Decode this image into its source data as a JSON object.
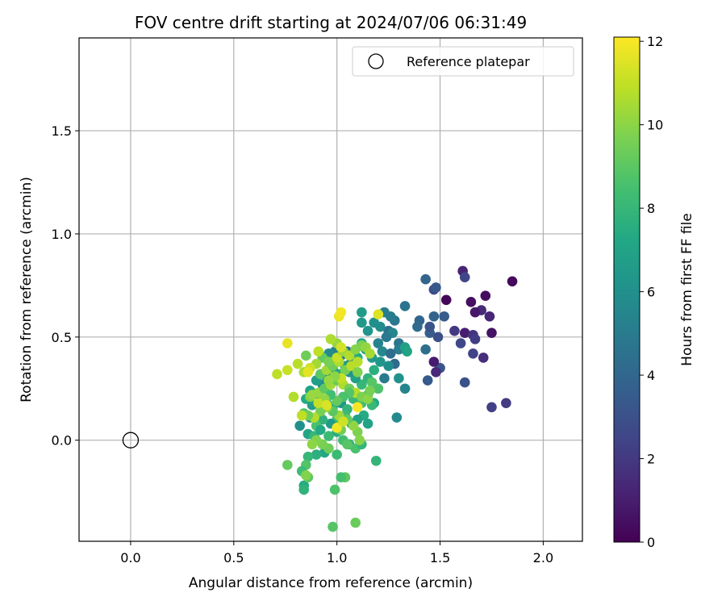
{
  "chart_data": {
    "type": "scatter",
    "title": "FOV centre drift starting at 2024/07/06 06:31:49",
    "xlabel": "Angular distance from reference (arcmin)",
    "ylabel": "Rotation from reference (arcmin)",
    "xlim": [
      -0.25,
      2.19
    ],
    "ylim": [
      -0.49,
      1.95
    ],
    "xticks": [
      0.0,
      0.5,
      1.0,
      1.5,
      2.0
    ],
    "xtick_labels": [
      "0.0",
      "0.5",
      "1.0",
      "1.5",
      "2.0"
    ],
    "yticks": [
      0.0,
      0.5,
      1.0,
      1.5
    ],
    "ytick_labels": [
      "0.0",
      "0.5",
      "1.0",
      "1.5"
    ],
    "grid": true,
    "legend": {
      "position": "top-right",
      "label": "Reference platepar",
      "marker": "open-circle"
    },
    "reference_point": {
      "x": 0.0,
      "y": 0.0
    },
    "colorbar": {
      "label": "Hours from first FF file",
      "colormap": "viridis",
      "range": [
        0,
        12.1
      ],
      "ticks": [
        0,
        2,
        4,
        6,
        8,
        10,
        12
      ],
      "tick_labels": [
        "0",
        "2",
        "4",
        "6",
        "8",
        "10",
        "12"
      ]
    },
    "points": [
      [
        1.85,
        0.77,
        0.3
      ],
      [
        1.72,
        0.7,
        0.4
      ],
      [
        1.65,
        0.67,
        0.5
      ],
      [
        1.61,
        0.82,
        1.2
      ],
      [
        1.75,
        0.52,
        0.6
      ],
      [
        1.7,
        0.63,
        1.5
      ],
      [
        1.67,
        0.62,
        0.8
      ],
      [
        1.62,
        0.52,
        1.0
      ],
      [
        1.66,
        0.51,
        1.8
      ],
      [
        1.57,
        0.53,
        2.0
      ],
      [
        1.62,
        0.79,
        2.5
      ],
      [
        1.47,
        0.73,
        2.8
      ],
      [
        1.53,
        0.68,
        0.2
      ],
      [
        1.74,
        0.6,
        1.3
      ],
      [
        1.67,
        0.49,
        2.2
      ],
      [
        1.6,
        0.47,
        2.6
      ],
      [
        1.66,
        0.42,
        2.4
      ],
      [
        1.71,
        0.4,
        1.6
      ],
      [
        1.82,
        0.18,
        2.1
      ],
      [
        1.75,
        0.16,
        2.3
      ],
      [
        1.62,
        0.28,
        3.0
      ],
      [
        1.5,
        0.35,
        3.2
      ],
      [
        1.48,
        0.33,
        1.4
      ],
      [
        1.47,
        0.38,
        0.9
      ],
      [
        1.44,
        0.29,
        3.4
      ],
      [
        1.45,
        0.52,
        3.6
      ],
      [
        1.47,
        0.6,
        3.8
      ],
      [
        1.52,
        0.6,
        3.5
      ],
      [
        1.43,
        0.78,
        3.9
      ],
      [
        1.48,
        0.74,
        3.3
      ],
      [
        1.4,
        0.58,
        4.0
      ],
      [
        1.39,
        0.55,
        4.2
      ],
      [
        1.43,
        0.44,
        4.4
      ],
      [
        1.45,
        0.55,
        3.1
      ],
      [
        1.49,
        0.5,
        2.9
      ],
      [
        1.33,
        0.65,
        4.6
      ],
      [
        1.28,
        0.58,
        4.8
      ],
      [
        1.26,
        0.6,
        5.0
      ],
      [
        1.23,
        0.62,
        5.2
      ],
      [
        1.25,
        0.53,
        4.5
      ],
      [
        1.3,
        0.47,
        4.7
      ],
      [
        1.27,
        0.52,
        5.5
      ],
      [
        1.21,
        0.55,
        5.8
      ],
      [
        1.18,
        0.57,
        6.0
      ],
      [
        1.15,
        0.53,
        6.2
      ],
      [
        1.12,
        0.57,
        6.4
      ],
      [
        1.12,
        0.62,
        6.6
      ],
      [
        1.24,
        0.5,
        4.9
      ],
      [
        1.3,
        0.44,
        5.1
      ],
      [
        1.33,
        0.45,
        6.8
      ],
      [
        1.34,
        0.43,
        7.0
      ],
      [
        1.2,
        0.47,
        5.3
      ],
      [
        1.22,
        0.43,
        5.6
      ],
      [
        1.26,
        0.42,
        4.3
      ],
      [
        1.28,
        0.37,
        4.1
      ],
      [
        1.25,
        0.36,
        5.9
      ],
      [
        1.3,
        0.3,
        6.1
      ],
      [
        1.33,
        0.25,
        5.4
      ],
      [
        1.29,
        0.11,
        5.7
      ],
      [
        1.23,
        0.3,
        5.0
      ],
      [
        1.21,
        0.38,
        6.3
      ],
      [
        1.17,
        0.4,
        6.5
      ],
      [
        1.14,
        0.44,
        6.7
      ],
      [
        1.12,
        0.47,
        7.2
      ],
      [
        1.1,
        0.4,
        7.4
      ],
      [
        1.07,
        0.38,
        5.2
      ],
      [
        1.05,
        0.43,
        4.6
      ],
      [
        1.02,
        0.41,
        4.8
      ],
      [
        0.99,
        0.43,
        5.3
      ],
      [
        0.96,
        0.42,
        5.8
      ],
      [
        1.18,
        0.34,
        7.6
      ],
      [
        1.15,
        0.3,
        7.8
      ],
      [
        1.12,
        0.27,
        8.0
      ],
      [
        1.09,
        0.3,
        6.9
      ],
      [
        1.06,
        0.33,
        6.2
      ],
      [
        1.04,
        0.36,
        6.6
      ],
      [
        1.01,
        0.32,
        7.1
      ],
      [
        0.98,
        0.35,
        6.4
      ],
      [
        0.95,
        0.31,
        5.5
      ],
      [
        0.93,
        0.27,
        5.9
      ],
      [
        0.9,
        0.29,
        6.8
      ],
      [
        0.87,
        0.24,
        7.0
      ],
      [
        0.85,
        0.2,
        7.3
      ],
      [
        0.88,
        0.17,
        6.7
      ],
      [
        0.92,
        0.2,
        6.1
      ],
      [
        0.95,
        0.18,
        7.5
      ],
      [
        0.98,
        0.16,
        7.7
      ],
      [
        1.02,
        0.18,
        6.3
      ],
      [
        1.05,
        0.15,
        7.9
      ],
      [
        1.08,
        0.2,
        8.1
      ],
      [
        1.12,
        0.18,
        8.3
      ],
      [
        1.15,
        0.22,
        8.5
      ],
      [
        1.18,
        0.18,
        7.2
      ],
      [
        1.2,
        0.25,
        8.7
      ],
      [
        1.17,
        0.28,
        8.9
      ],
      [
        1.13,
        0.12,
        7.4
      ],
      [
        1.1,
        0.1,
        6.9
      ],
      [
        1.07,
        0.08,
        7.6
      ],
      [
        1.04,
        0.12,
        8.2
      ],
      [
        1.0,
        0.1,
        8.4
      ],
      [
        0.97,
        0.08,
        6.6
      ],
      [
        0.93,
        0.1,
        7.8
      ],
      [
        0.9,
        0.07,
        8.6
      ],
      [
        0.87,
        0.11,
        6.4
      ],
      [
        0.84,
        0.13,
        8.8
      ],
      [
        0.82,
        0.07,
        6.0
      ],
      [
        0.86,
        0.03,
        7.1
      ],
      [
        0.89,
        0.02,
        8.0
      ],
      [
        0.92,
        0.05,
        7.3
      ],
      [
        0.96,
        0.02,
        8.2
      ],
      [
        1.0,
        0.04,
        7.5
      ],
      [
        1.03,
        0.0,
        8.4
      ],
      [
        1.06,
        -0.02,
        7.7
      ],
      [
        1.09,
        -0.04,
        8.6
      ],
      [
        1.12,
        -0.02,
        7.9
      ],
      [
        1.15,
        0.08,
        7.0
      ],
      [
        1.17,
        0.17,
        8.1
      ],
      [
        1.05,
        -0.02,
        8.9
      ],
      [
        0.94,
        -0.06,
        7.2
      ],
      [
        0.9,
        -0.07,
        7.6
      ],
      [
        0.86,
        -0.08,
        8.0
      ],
      [
        0.85,
        -0.12,
        8.8
      ],
      [
        0.83,
        -0.15,
        8.3
      ],
      [
        0.84,
        -0.22,
        7.4
      ],
      [
        0.86,
        -0.18,
        9.0
      ],
      [
        0.84,
        -0.24,
        7.8
      ],
      [
        0.76,
        -0.12,
        9.2
      ],
      [
        0.85,
        -0.17,
        9.8
      ],
      [
        1.04,
        -0.18,
        9.1
      ],
      [
        1.02,
        -0.18,
        8.5
      ],
      [
        0.99,
        -0.24,
        8.7
      ],
      [
        1.19,
        -0.1,
        7.9
      ],
      [
        0.98,
        -0.42,
        8.9
      ],
      [
        1.09,
        -0.4,
        9.3
      ],
      [
        1.0,
        -0.07,
        8.2
      ],
      [
        0.96,
        -0.04,
        9.4
      ],
      [
        0.93,
        -0.02,
        9.6
      ],
      [
        0.9,
        0.0,
        9.8
      ],
      [
        0.88,
        -0.02,
        10.0
      ],
      [
        1.02,
        0.05,
        9.5
      ],
      [
        1.1,
        0.04,
        9.7
      ],
      [
        1.11,
        0.0,
        9.9
      ],
      [
        1.08,
        0.07,
        10.1
      ],
      [
        1.05,
        0.1,
        9.2
      ],
      [
        1.01,
        0.12,
        10.3
      ],
      [
        0.98,
        0.14,
        9.0
      ],
      [
        0.95,
        0.16,
        10.5
      ],
      [
        0.92,
        0.14,
        9.6
      ],
      [
        0.89,
        0.11,
        10.7
      ],
      [
        0.86,
        0.12,
        9.4
      ],
      [
        0.83,
        0.12,
        10.9
      ],
      [
        0.87,
        0.21,
        9.8
      ],
      [
        0.91,
        0.23,
        10.2
      ],
      [
        0.94,
        0.25,
        9.1
      ],
      [
        0.97,
        0.27,
        10.4
      ],
      [
        1.0,
        0.29,
        9.3
      ],
      [
        1.03,
        0.27,
        10.6
      ],
      [
        1.06,
        0.25,
        9.5
      ],
      [
        1.09,
        0.23,
        10.8
      ],
      [
        1.12,
        0.21,
        9.7
      ],
      [
        1.15,
        0.2,
        10.0
      ],
      [
        1.16,
        0.24,
        9.6
      ],
      [
        1.06,
        0.23,
        8.8
      ],
      [
        1.03,
        0.21,
        8.6
      ],
      [
        1.0,
        0.19,
        9.2
      ],
      [
        0.97,
        0.22,
        8.4
      ],
      [
        0.94,
        0.2,
        10.1
      ],
      [
        0.91,
        0.18,
        11.0
      ],
      [
        0.88,
        0.22,
        10.2
      ],
      [
        0.92,
        0.32,
        9.0
      ],
      [
        0.95,
        0.34,
        10.4
      ],
      [
        0.98,
        0.36,
        9.4
      ],
      [
        1.01,
        0.38,
        10.6
      ],
      [
        1.04,
        0.34,
        9.6
      ],
      [
        1.07,
        0.36,
        10.8
      ],
      [
        1.1,
        0.33,
        9.8
      ],
      [
        1.02,
        0.3,
        11.0
      ],
      [
        0.99,
        0.31,
        10.0
      ],
      [
        0.96,
        0.29,
        10.2
      ],
      [
        0.93,
        0.4,
        9.2
      ],
      [
        0.9,
        0.37,
        10.4
      ],
      [
        0.87,
        0.35,
        11.2
      ],
      [
        0.84,
        0.33,
        10.6
      ],
      [
        0.81,
        0.37,
        10.8
      ],
      [
        0.85,
        0.41,
        9.4
      ],
      [
        0.91,
        0.43,
        10.9
      ],
      [
        0.96,
        0.38,
        9.6
      ],
      [
        1.0,
        0.4,
        11.1
      ],
      [
        1.03,
        0.43,
        10.3
      ],
      [
        1.06,
        0.41,
        10.7
      ],
      [
        1.09,
        0.44,
        9.9
      ],
      [
        1.12,
        0.46,
        9.7
      ],
      [
        1.14,
        0.45,
        10.1
      ],
      [
        1.16,
        0.42,
        10.5
      ],
      [
        1.1,
        0.38,
        10.8
      ],
      [
        1.0,
        0.47,
        10.2
      ],
      [
        1.02,
        0.45,
        11.3
      ],
      [
        0.97,
        0.49,
        10.6
      ],
      [
        1.01,
        0.6,
        11.8
      ],
      [
        1.02,
        0.62,
        11.9
      ],
      [
        1.2,
        0.61,
        11.5
      ],
      [
        0.76,
        0.47,
        11.7
      ],
      [
        0.76,
        0.34,
        11.1
      ],
      [
        0.71,
        0.32,
        10.9
      ],
      [
        0.79,
        0.21,
        10.7
      ],
      [
        0.86,
        0.33,
        11.6
      ],
      [
        0.95,
        0.17,
        11.4
      ],
      [
        1.1,
        0.16,
        12.0
      ],
      [
        1.0,
        0.06,
        11.9
      ],
      [
        1.03,
        0.09,
        11.2
      ]
    ]
  }
}
